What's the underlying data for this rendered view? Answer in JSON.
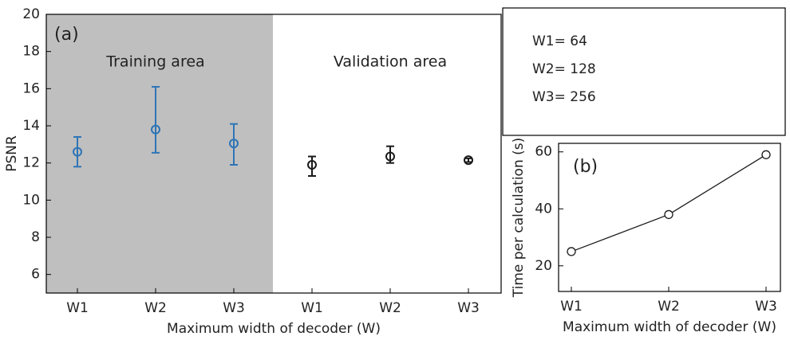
{
  "chart_data": [
    {
      "type": "errorbar",
      "label": "(a)",
      "xlabel": "Maximum width of decoder (W)",
      "ylabel": "PSNR",
      "categories": [
        "W1",
        "W2",
        "W3",
        "W1",
        "W2",
        "W3"
      ],
      "series": [
        {
          "name": "Training area",
          "color": "#2e75b6",
          "values": [
            12.6,
            13.8,
            13.05,
            null,
            null,
            null
          ],
          "err_minus": [
            0.8,
            1.25,
            1.15,
            null,
            null,
            null
          ],
          "err_plus": [
            0.8,
            2.3,
            1.05,
            null,
            null,
            null
          ],
          "shade": "#bfbfbf"
        },
        {
          "name": "Validation area",
          "color": "#1a1a1a",
          "values": [
            null,
            null,
            null,
            11.9,
            12.35,
            12.15
          ],
          "err_minus": [
            null,
            null,
            null,
            0.6,
            0.35,
            0.1
          ],
          "err_plus": [
            null,
            null,
            null,
            0.45,
            0.55,
            0.1
          ]
        }
      ],
      "ylim": [
        5,
        20
      ],
      "yticks": [
        6,
        8,
        10,
        12,
        14,
        16,
        18,
        20
      ]
    },
    {
      "type": "line",
      "label": "(b)",
      "xlabel": "Maximum width of decoder (W)",
      "ylabel": "Time  per calculation (s)",
      "categories": [
        "W1",
        "W2",
        "W3"
      ],
      "values": [
        25,
        38,
        59
      ],
      "color": "#1a1a1a",
      "ylim": [
        11,
        63
      ],
      "yticks": [
        20,
        40,
        60
      ],
      "annotations": [
        "W1= 64",
        "W2= 128",
        "W3= 256"
      ]
    }
  ]
}
